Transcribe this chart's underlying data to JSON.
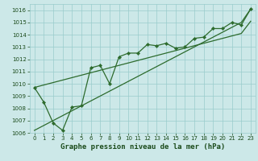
{
  "xlabel": "Graphe pression niveau de la mer (hPa)",
  "ylim": [
    1006,
    1016.5
  ],
  "xlim": [
    -0.5,
    23.5
  ],
  "yticks": [
    1006,
    1007,
    1008,
    1009,
    1010,
    1011,
    1012,
    1013,
    1014,
    1015,
    1016
  ],
  "xticks": [
    0,
    1,
    2,
    3,
    4,
    5,
    6,
    7,
    8,
    9,
    10,
    11,
    12,
    13,
    14,
    15,
    16,
    17,
    18,
    19,
    20,
    21,
    22,
    23
  ],
  "bg_color": "#cce8e8",
  "grid_color": "#99cccc",
  "line_color": "#2d6b2d",
  "line1_y": [
    1009.7,
    1008.5,
    1006.8,
    1006.2,
    1008.1,
    1008.2,
    1011.3,
    1011.5,
    1010.0,
    1012.2,
    1012.5,
    1012.5,
    1013.2,
    1013.1,
    1013.3,
    1012.9,
    1013.0,
    1013.7,
    1013.8,
    1014.5,
    1014.5,
    1015.0,
    1014.8,
    1016.1
  ],
  "line2_y": [
    1009.7,
    1009.9,
    1010.1,
    1010.3,
    1010.5,
    1010.7,
    1010.9,
    1011.1,
    1011.3,
    1011.5,
    1011.7,
    1011.9,
    1012.1,
    1012.3,
    1012.5,
    1012.7,
    1012.9,
    1013.1,
    1013.3,
    1013.5,
    1013.7,
    1013.9,
    1014.1,
    1015.1
  ],
  "line3_y": [
    1006.2,
    1006.6,
    1007.0,
    1007.4,
    1007.8,
    1008.2,
    1008.6,
    1009.0,
    1009.4,
    1009.8,
    1010.2,
    1010.6,
    1011.0,
    1011.4,
    1011.8,
    1012.2,
    1012.6,
    1013.0,
    1013.4,
    1013.8,
    1014.2,
    1014.6,
    1015.0,
    1016.1
  ],
  "marker_size": 2.2,
  "line_width": 0.9,
  "tick_fontsize": 5.0,
  "xlabel_fontsize": 6.5
}
